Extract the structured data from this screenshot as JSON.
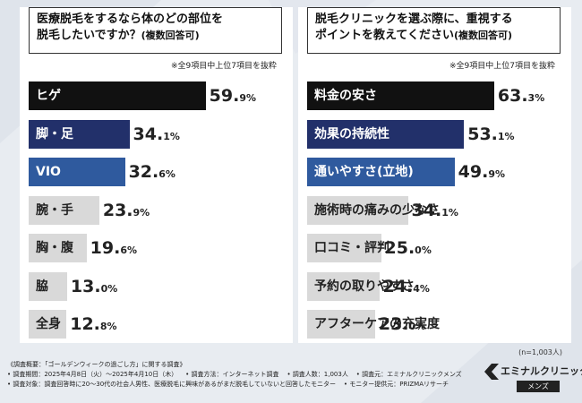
{
  "chart_data": [
    {
      "type": "bar",
      "title": "医療脱毛をするなら体のどの部位を\n脱毛したいですか？",
      "subtitle": "(複数回答可)",
      "note": "※全9項目中上位7項目を抜粋",
      "categories": [
        "ヒゲ",
        "脚・足",
        "VIO",
        "腕・手",
        "胸・腹",
        "脇",
        "全身"
      ],
      "values": [
        59.9,
        34.1,
        32.6,
        23.9,
        19.6,
        13.0,
        12.8
      ],
      "value_labels": [
        [
          "59.",
          "9%"
        ],
        [
          "34.",
          "1%"
        ],
        [
          "32.",
          "6%"
        ],
        [
          "23.",
          "9%"
        ],
        [
          "19.",
          "6%"
        ],
        [
          "13.",
          "0%"
        ],
        [
          "12.",
          "8%"
        ]
      ],
      "colors": [
        "#111111",
        "#22306a",
        "#2f5a9e",
        "#d9d9d9",
        "#d9d9d9",
        "#d9d9d9",
        "#d9d9d9"
      ],
      "xlim": [
        0,
        100
      ]
    },
    {
      "type": "bar",
      "title": "脱毛クリニックを選ぶ際に、重視する\nポイントを教えてください",
      "subtitle": "(複数回答可)",
      "note": "※全9項目中上位7項目を抜粋",
      "categories": [
        "料金の安さ",
        "効果の持続性",
        "通いやすさ(立地)",
        "施術時の痛みの少なさ",
        "口コミ・評判",
        "予約の取りやすさ",
        "アフターケアの充実度"
      ],
      "values": [
        63.3,
        53.1,
        49.9,
        34.1,
        25.0,
        24.4,
        23.0
      ],
      "value_labels": [
        [
          "63.",
          "3%"
        ],
        [
          "53.",
          "1%"
        ],
        [
          "49.",
          "9%"
        ],
        [
          "34.",
          "1%"
        ],
        [
          "25.",
          "0%"
        ],
        [
          "24.",
          "4%"
        ],
        [
          "23.",
          "0%"
        ]
      ],
      "colors": [
        "#111111",
        "#22306a",
        "#2f5a9e",
        "#d9d9d9",
        "#d9d9d9",
        "#d9d9d9",
        "#d9d9d9"
      ],
      "xlim": [
        0,
        100
      ]
    }
  ],
  "n_label": "(n=1,003人)",
  "footer": {
    "row1": "《調査概要：「ゴールデンウィークの過ごし方」に関する調査》",
    "row2a": "• 調査期間：2025年4月8日（火）～2025年4月10日（木）",
    "row2b": "• 調査方法：インターネット調査",
    "row2c": "• 調査人数：1,003人",
    "row2d": "• 調査元：エミナルクリニックメンズ",
    "row3a": "• 調査対象：調査回答時に20～30代の社会人男性、医療脱毛に興味があるがまだ脱毛していないと回答したモニター",
    "row3b": "• モニター提供元：PRIZMAリサーチ"
  },
  "logo": {
    "name": "エミナルクリニック",
    "sub": "メンズ"
  }
}
